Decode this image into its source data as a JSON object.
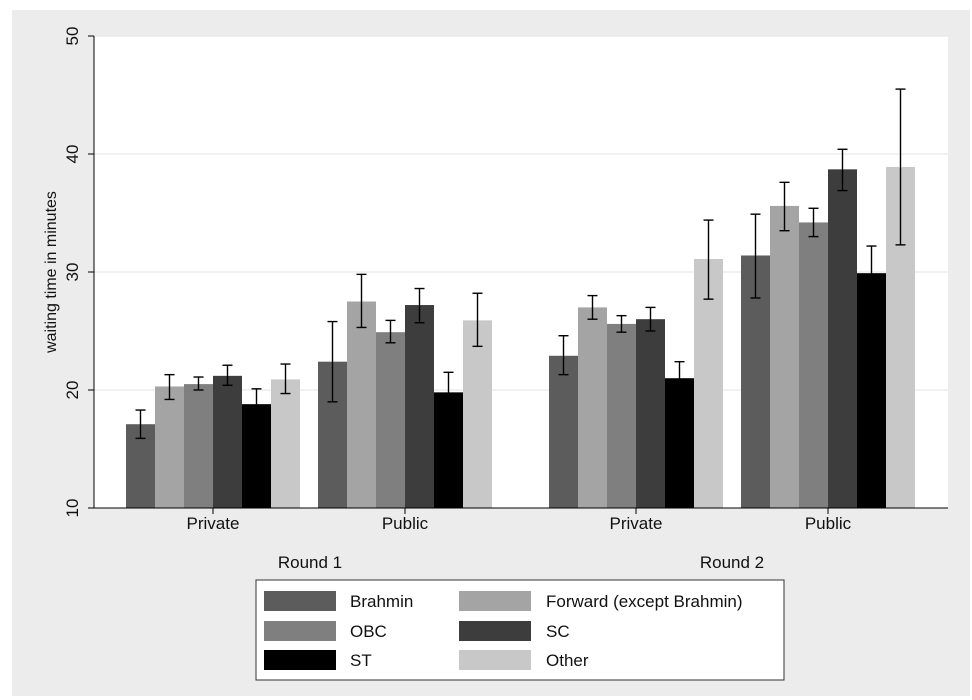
{
  "chart_data": {
    "type": "bar",
    "ylabel": "waiting time in minutes",
    "ylim": [
      10,
      50
    ],
    "yticks": [
      "10",
      "20",
      "30",
      "40",
      "50"
    ],
    "grid": true,
    "legend_position": "bottom",
    "rounds": [
      {
        "label": "Round 1",
        "groups": [
          {
            "label": "Private",
            "values": [
              17.1,
              20.3,
              20.5,
              21.2,
              18.8,
              20.9
            ],
            "ci_low": [
              15.9,
              19.2,
              20.0,
              20.4,
              17.5,
              19.7
            ],
            "ci_high": [
              18.3,
              21.3,
              21.1,
              22.1,
              20.1,
              22.2
            ]
          },
          {
            "label": "Public",
            "values": [
              22.4,
              27.5,
              24.9,
              27.2,
              19.8,
              25.9
            ],
            "ci_low": [
              19.0,
              25.3,
              24.0,
              25.7,
              18.2,
              23.7
            ],
            "ci_high": [
              25.8,
              29.8,
              25.9,
              28.6,
              21.5,
              28.2
            ]
          }
        ]
      },
      {
        "label": "Round 2",
        "groups": [
          {
            "label": "Private",
            "values": [
              22.9,
              27.0,
              25.6,
              26.0,
              21.0,
              31.1
            ],
            "ci_low": [
              21.3,
              26.0,
              24.9,
              25.0,
              19.6,
              27.7
            ],
            "ci_high": [
              24.6,
              28.0,
              26.3,
              27.0,
              22.4,
              34.4
            ]
          },
          {
            "label": "Public",
            "values": [
              31.4,
              35.6,
              34.2,
              38.7,
              29.9,
              38.9
            ],
            "ci_low": [
              27.8,
              33.5,
              33.0,
              36.9,
              27.6,
              32.3
            ],
            "ci_high": [
              34.9,
              37.6,
              35.4,
              40.4,
              32.2,
              45.5
            ]
          }
        ]
      }
    ],
    "series": [
      {
        "name": "Brahmin",
        "color": "#5c5c5c"
      },
      {
        "name": "Forward (except Brahmin)",
        "color": "#a4a4a4"
      },
      {
        "name": "OBC",
        "color": "#7f7f7f"
      },
      {
        "name": "SC",
        "color": "#3d3d3d"
      },
      {
        "name": "ST",
        "color": "#000000"
      },
      {
        "name": "Other",
        "color": "#c8c8c8"
      }
    ]
  }
}
